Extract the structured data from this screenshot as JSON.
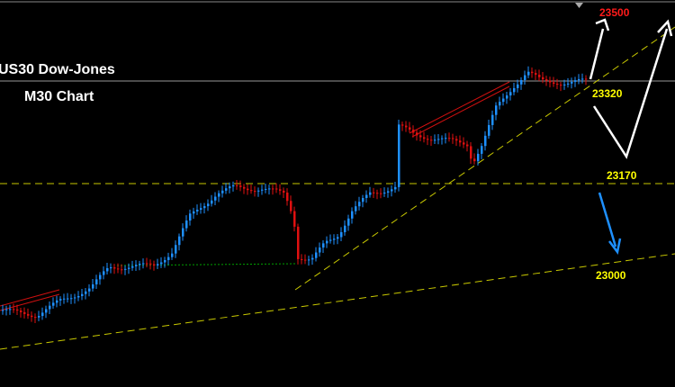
{
  "title": "US30 Dow-Jones",
  "subtitle": "M30 Chart",
  "levels": [
    {
      "label": "23500",
      "color": "#ff1a1a"
    },
    {
      "label": "23320",
      "color": "#ffff00"
    },
    {
      "label": "23170",
      "color": "#ffff00"
    },
    {
      "label": "23000",
      "color": "#ffff00"
    }
  ]
}
